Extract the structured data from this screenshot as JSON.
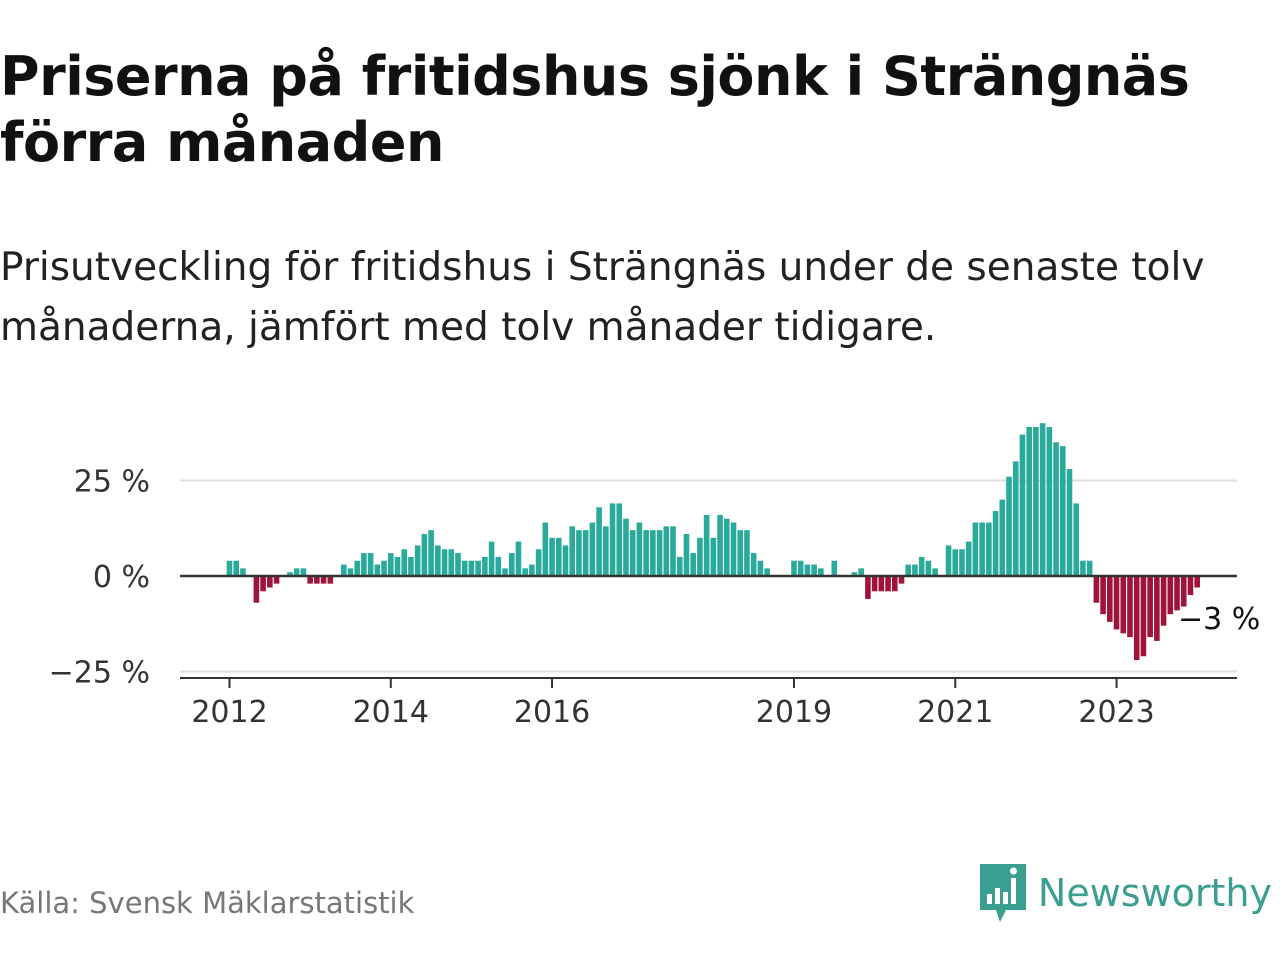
{
  "title": "Priserna på fritidshus sjönk i Strängnäs förra månaden",
  "subtitle": "Prisutveckling för fritidshus i Strängnäs under de senaste tolv månaderna, jämfört med tolv månader tidigare.",
  "source": "Källa: Svensk Mäklarstatistik",
  "brand": {
    "name": "Newsworthy",
    "logo_icon": "newsworthy-logo-icon",
    "color": "#3a9e91"
  },
  "chart_data": {
    "type": "bar",
    "title": "Priserna på fritidshus sjönk i Strängnäs förra månaden",
    "subtitle": "Prisutveckling för fritidshus i Strängnäs under de senaste tolv månaderna, jämfört med tolv månader tidigare.",
    "xlabel": "",
    "ylabel": "",
    "ylim": [
      -25,
      40
    ],
    "yticks": [
      25,
      0,
      -25
    ],
    "ytick_labels": [
      "25 %",
      "0 %",
      "−25 %"
    ],
    "xticks": [
      {
        "label": "2012",
        "index": 0
      },
      {
        "label": "2014",
        "index": 24
      },
      {
        "label": "2016",
        "index": 48
      },
      {
        "label": "2019",
        "index": 84
      },
      {
        "label": "2021",
        "index": 108
      },
      {
        "label": "2023",
        "index": 132
      }
    ],
    "gridlines": [
      25,
      -25
    ],
    "positive_color": "#2aaa9a",
    "negative_color": "#a0143c",
    "annotation": {
      "label": "−3 %",
      "index": 141
    },
    "values": [
      4,
      4,
      2,
      null,
      -7,
      -4,
      -3,
      -2,
      null,
      1,
      2,
      2,
      -2,
      -2,
      -2,
      -2,
      null,
      3,
      2,
      4,
      6,
      6,
      3,
      4,
      6,
      5,
      7,
      5,
      8,
      11,
      12,
      8,
      7,
      7,
      6,
      4,
      4,
      4,
      5,
      9,
      5,
      2,
      6,
      9,
      2,
      3,
      7,
      14,
      10,
      10,
      8,
      13,
      12,
      12,
      14,
      18,
      13,
      19,
      19,
      15,
      12,
      14,
      12,
      12,
      12,
      13,
      13,
      5,
      11,
      6,
      10,
      16,
      10,
      16,
      15,
      14,
      12,
      12,
      6,
      4,
      2,
      null,
      null,
      null,
      4,
      4,
      3,
      3,
      2,
      null,
      4,
      null,
      null,
      1,
      2,
      -6,
      -4,
      -4,
      -4,
      -4,
      -2,
      3,
      3,
      5,
      4,
      2,
      null,
      8,
      7,
      7,
      9,
      14,
      14,
      14,
      17,
      20,
      26,
      30,
      37,
      39,
      39,
      40,
      39,
      35,
      34,
      28,
      19,
      4,
      4,
      -7,
      -10,
      -12,
      -14,
      -15,
      -16,
      -22,
      -21,
      -16,
      -17,
      -13,
      -10,
      -9,
      -8,
      -5,
      -3
    ]
  }
}
